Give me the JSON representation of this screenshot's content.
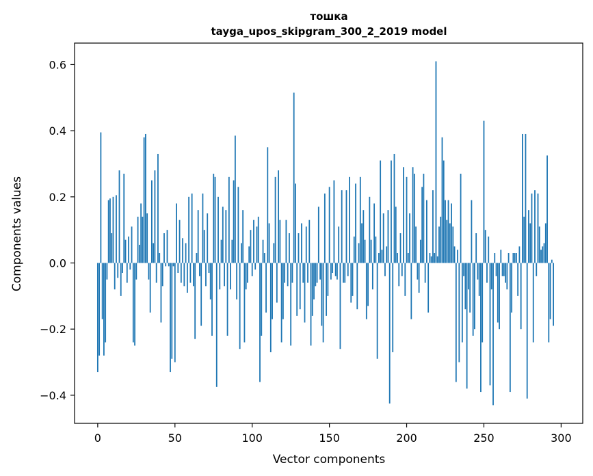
{
  "chart_data": {
    "type": "bar",
    "title": "тошка",
    "subtitle": "tayga_upos_skipgram_300_2_2019 model",
    "xlabel": "Vector components",
    "ylabel": "Components values",
    "xlim": [
      -15,
      314
    ],
    "ylim": [
      -0.485,
      0.665
    ],
    "xticks": [
      0,
      50,
      100,
      150,
      200,
      250,
      300
    ],
    "xtick_labels": [
      "0",
      "50",
      "100",
      "150",
      "200",
      "250",
      "300"
    ],
    "yticks": [
      -0.4,
      -0.2,
      0.0,
      0.2,
      0.4,
      0.6
    ],
    "ytick_labels": [
      "−0.4",
      "−0.2",
      "0.0",
      "0.2",
      "0.4",
      "0.6"
    ],
    "grid": false,
    "bar_color": "#1f77b4",
    "x_start": 0,
    "values": [
      -0.33,
      -0.28,
      0.395,
      -0.17,
      -0.28,
      -0.24,
      -0.05,
      0.19,
      0.195,
      0.09,
      0.2,
      -0.08,
      0.205,
      -0.045,
      0.28,
      -0.1,
      -0.03,
      0.27,
      0.07,
      -0.06,
      0.08,
      -0.02,
      0.11,
      -0.24,
      -0.25,
      -0.05,
      0.14,
      0.055,
      0.18,
      0.14,
      0.38,
      0.39,
      0.15,
      -0.05,
      -0.15,
      0.25,
      0.06,
      0.28,
      -0.06,
      0.33,
      0.03,
      -0.18,
      -0.07,
      0.09,
      -0.01,
      0.1,
      -0.01,
      -0.33,
      -0.29,
      -0.01,
      -0.3,
      0.18,
      -0.03,
      0.13,
      -0.06,
      0.075,
      -0.07,
      0.06,
      -0.09,
      0.2,
      -0.06,
      0.21,
      -0.07,
      -0.23,
      0.03,
      0.16,
      -0.04,
      -0.19,
      0.21,
      0.1,
      -0.07,
      0.15,
      -0.03,
      -0.11,
      -0.22,
      0.27,
      0.26,
      -0.375,
      0.2,
      -0.08,
      0.07,
      0.17,
      -0.07,
      0.16,
      -0.22,
      0.26,
      -0.08,
      0.07,
      0.25,
      0.385,
      -0.11,
      0.23,
      -0.26,
      0.06,
      0.16,
      -0.24,
      -0.08,
      -0.06,
      0.05,
      0.1,
      -0.04,
      0.13,
      -0.02,
      0.11,
      0.14,
      -0.36,
      -0.22,
      0.07,
      0.03,
      -0.15,
      0.35,
      0.12,
      -0.27,
      -0.17,
      0.06,
      0.26,
      -0.12,
      0.28,
      0.13,
      -0.24,
      -0.17,
      -0.06,
      0.13,
      -0.07,
      0.09,
      -0.25,
      -0.06,
      0.515,
      0.24,
      -0.16,
      0.09,
      -0.14,
      0.12,
      -0.06,
      -0.18,
      0.11,
      -0.06,
      0.13,
      -0.25,
      -0.16,
      -0.11,
      -0.07,
      -0.06,
      0.17,
      -0.05,
      -0.19,
      -0.24,
      0.21,
      -0.16,
      -0.1,
      0.23,
      -0.05,
      -0.03,
      0.25,
      -0.04,
      -0.05,
      0.11,
      -0.26,
      0.22,
      -0.06,
      -0.06,
      0.22,
      -0.04,
      0.26,
      -0.12,
      -0.1,
      0.08,
      0.24,
      -0.14,
      0.06,
      0.26,
      0.12,
      0.16,
      0.07,
      -0.17,
      -0.13,
      0.2,
      0.07,
      -0.08,
      0.18,
      0.08,
      -0.29,
      0.03,
      0.31,
      0.04,
      0.15,
      -0.04,
      0.05,
      0.16,
      -0.425,
      0.31,
      -0.27,
      0.33,
      0.17,
      0.03,
      -0.07,
      0.09,
      -0.04,
      0.29,
      -0.1,
      0.26,
      0.03,
      0.15,
      -0.17,
      0.29,
      0.27,
      0.11,
      -0.05,
      -0.09,
      0.07,
      0.23,
      0.27,
      -0.06,
      0.19,
      -0.15,
      0.03,
      0.02,
      0.22,
      0.03,
      0.61,
      0.02,
      0.11,
      0.14,
      0.38,
      0.31,
      0.19,
      0.13,
      0.19,
      0.12,
      0.18,
      0.11,
      0.05,
      -0.36,
      0.04,
      -0.3,
      0.27,
      -0.24,
      -0.04,
      -0.14,
      -0.38,
      -0.08,
      -0.15,
      0.19,
      -0.22,
      -0.2,
      0.09,
      -0.05,
      -0.1,
      -0.39,
      -0.24,
      0.43,
      0.1,
      -0.06,
      0.08,
      -0.37,
      -0.08,
      -0.43,
      0.03,
      -0.04,
      -0.18,
      -0.2,
      0.04,
      -0.04,
      -0.04,
      -0.06,
      -0.08,
      0.03,
      -0.39,
      -0.15,
      0.03,
      0.03,
      0.03,
      -0.1,
      0.05,
      -0.2,
      0.39,
      0.14,
      0.39,
      -0.41,
      0.16,
      0.12,
      0.21,
      -0.24,
      0.22,
      -0.04,
      0.21,
      0.11,
      0.04,
      0.05,
      0.06,
      0.12,
      0.325,
      -0.24,
      -0.17,
      0.01,
      -0.19
    ]
  }
}
